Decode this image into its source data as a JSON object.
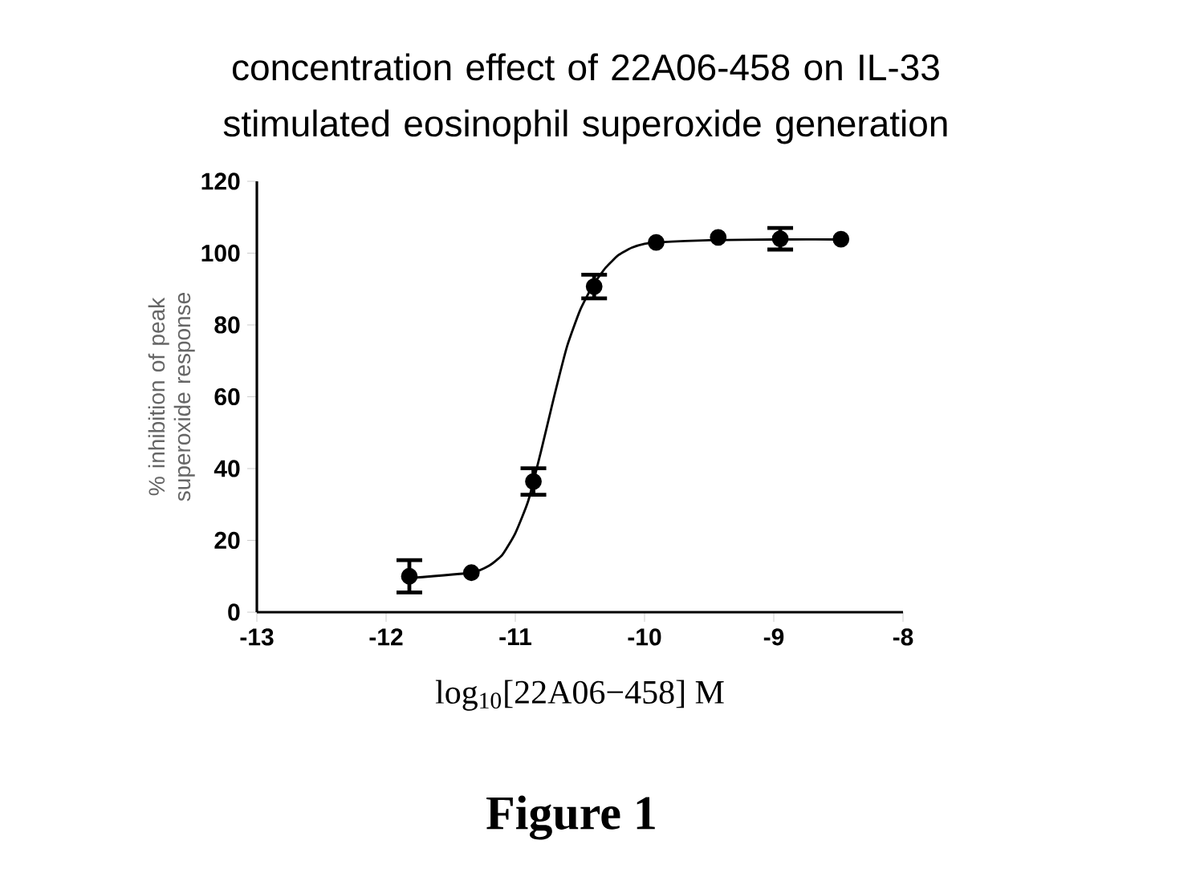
{
  "chart_data": {
    "type": "scatter",
    "title": "concentration effect of 22A06-458 on IL-33 stimulated eosinophil superoxide generation",
    "xlabel": "log$_{10}$[22A06−458] M",
    "ylabel": "% inhibition of peak superoxide response",
    "annotations": [
      "**Figure 1**"
    ],
    "xlim": [
      -13,
      -8
    ],
    "xticks": [
      -13,
      -12,
      -11,
      -10,
      -9,
      -8
    ],
    "ylim": [
      0,
      120
    ],
    "yticks": [
      0,
      20,
      40,
      60,
      80,
      100,
      120
    ],
    "marker": "circle",
    "grid": false,
    "series": [
      {
        "color": "#000000",
        "x": [
          -11.82,
          -11.34,
          -10.86,
          -10.39,
          -9.91,
          -9.43,
          -8.95,
          -8.48
        ],
        "values": [
          10,
          11,
          36.4,
          90.7,
          103,
          104.4,
          104,
          103.9
        ],
        "errors": [
          4.5,
          null,
          3.7,
          3.3,
          null,
          null,
          3,
          null
        ]
      },
      {
        "type": "line",
        "color": "#000000",
        "marker": "none",
        "x": [
          -11.82,
          -11.34,
          -11.2,
          -11.1,
          -11.0,
          -10.9,
          -10.8,
          -10.7,
          -10.6,
          -10.5,
          -10.4,
          -10.3,
          -10.2,
          -10.1,
          -10.0,
          -9.9,
          -9.5,
          -9.0,
          -8.48
        ],
        "values": [
          9.5,
          11,
          13,
          16,
          22,
          31,
          45,
          60,
          74,
          84,
          91,
          96,
          99.5,
          101.5,
          102.6,
          103,
          103.6,
          103.8,
          103.8
        ]
      }
    ]
  }
}
